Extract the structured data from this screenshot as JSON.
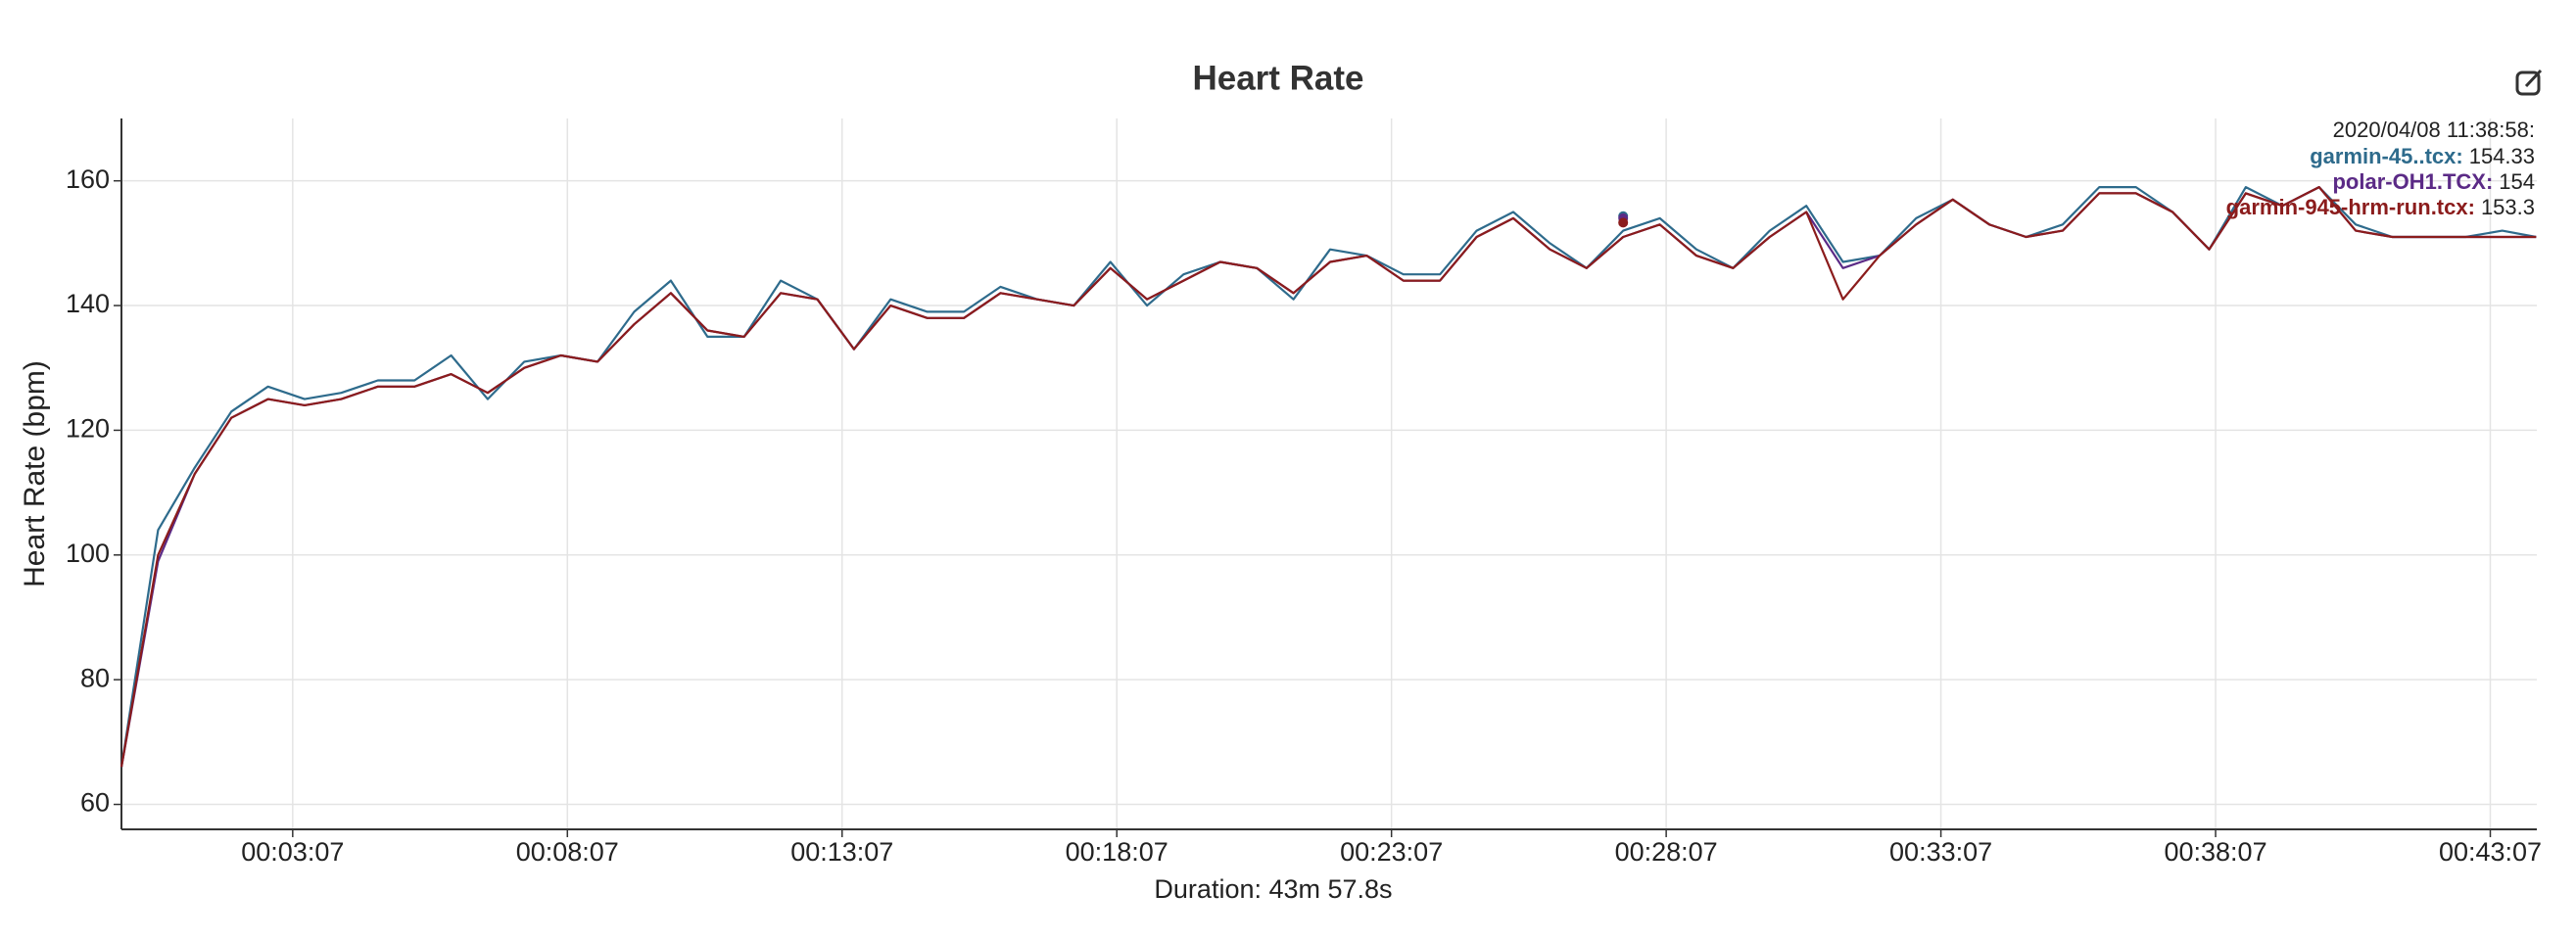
{
  "chart_data": {
    "type": "line",
    "title": "Heart Rate",
    "ylabel": "Heart Rate (bpm)",
    "xlabel": "Duration: 43m 57.8s",
    "xlim": [
      0,
      2637.8
    ],
    "ylim": [
      56,
      170
    ],
    "grid": true,
    "xticks": [
      {
        "value": 187,
        "label": "00:03:07"
      },
      {
        "value": 487,
        "label": "00:08:07"
      },
      {
        "value": 787,
        "label": "00:13:07"
      },
      {
        "value": 1087,
        "label": "00:18:07"
      },
      {
        "value": 1387,
        "label": "00:23:07"
      },
      {
        "value": 1687,
        "label": "00:28:07"
      },
      {
        "value": 1987,
        "label": "00:33:07"
      },
      {
        "value": 2287,
        "label": "00:38:07"
      },
      {
        "value": 2587,
        "label": "00:43:07"
      }
    ],
    "yticks": [
      60,
      80,
      100,
      120,
      140,
      160
    ],
    "x": [
      0,
      40,
      80,
      120,
      160,
      200,
      240,
      280,
      320,
      360,
      400,
      440,
      480,
      520,
      560,
      600,
      640,
      680,
      720,
      760,
      800,
      840,
      880,
      920,
      960,
      1000,
      1040,
      1080,
      1120,
      1160,
      1200,
      1240,
      1280,
      1320,
      1360,
      1400,
      1440,
      1480,
      1520,
      1560,
      1600,
      1640,
      1680,
      1720,
      1760,
      1800,
      1840,
      1880,
      1920,
      1960,
      2000,
      2040,
      2080,
      2120,
      2160,
      2200,
      2240,
      2280,
      2320,
      2360,
      2400,
      2440,
      2480,
      2520,
      2560,
      2600,
      2637
    ],
    "series": [
      {
        "name": "garmin-45..tcx",
        "color": "#2e6b8c",
        "values": [
          66,
          104,
          114,
          123,
          127,
          125,
          126,
          128,
          128,
          132,
          125,
          131,
          132,
          131,
          139,
          144,
          135,
          135,
          144,
          141,
          133,
          141,
          139,
          139,
          143,
          141,
          140,
          147,
          140,
          145,
          147,
          146,
          141,
          149,
          148,
          145,
          145,
          152,
          155,
          150,
          146,
          152,
          154,
          149,
          146,
          152,
          156,
          147,
          148,
          154,
          157,
          153,
          151,
          153,
          159,
          159,
          155,
          149,
          159,
          156,
          159,
          153,
          151,
          151,
          151,
          152,
          151
        ]
      },
      {
        "name": "polar-OH1.TCX",
        "color": "#5b2a86",
        "values": [
          66,
          99,
          113,
          122,
          125,
          124,
          125,
          127,
          127,
          129,
          126,
          130,
          132,
          131,
          137,
          142,
          136,
          135,
          142,
          141,
          133,
          140,
          138,
          138,
          142,
          141,
          140,
          146,
          141,
          144,
          147,
          146,
          142,
          147,
          148,
          144,
          144,
          151,
          154,
          149,
          146,
          151,
          153,
          148,
          146,
          151,
          155,
          146,
          148,
          153,
          157,
          153,
          151,
          152,
          158,
          158,
          155,
          149,
          158,
          156,
          159,
          152,
          151,
          151,
          151,
          151,
          151
        ]
      },
      {
        "name": "garmin-945-hrm-run.tcx",
        "color": "#8b1c1c",
        "values": [
          66,
          100,
          113,
          122,
          125,
          124,
          125,
          127,
          127,
          129,
          126,
          130,
          132,
          131,
          137,
          142,
          136,
          135,
          142,
          141,
          133,
          140,
          138,
          138,
          142,
          141,
          140,
          146,
          141,
          144,
          147,
          146,
          142,
          147,
          148,
          144,
          144,
          151,
          154,
          149,
          146,
          151,
          153,
          148,
          146,
          151,
          155,
          141,
          148,
          153,
          157,
          153,
          151,
          152,
          158,
          158,
          155,
          149,
          158,
          156,
          159,
          152,
          151,
          151,
          151,
          151,
          151
        ]
      }
    ],
    "tooltip": {
      "title": "2020/04/08 11:38:58:",
      "entries": [
        {
          "label": "garmin-45..tcx:",
          "value": 154.33
        },
        {
          "label": "polar-OH1.TCX:",
          "value": 154
        },
        {
          "label": "garmin-945-hrm-run.tcx:",
          "value": 153.3
        }
      ]
    }
  }
}
